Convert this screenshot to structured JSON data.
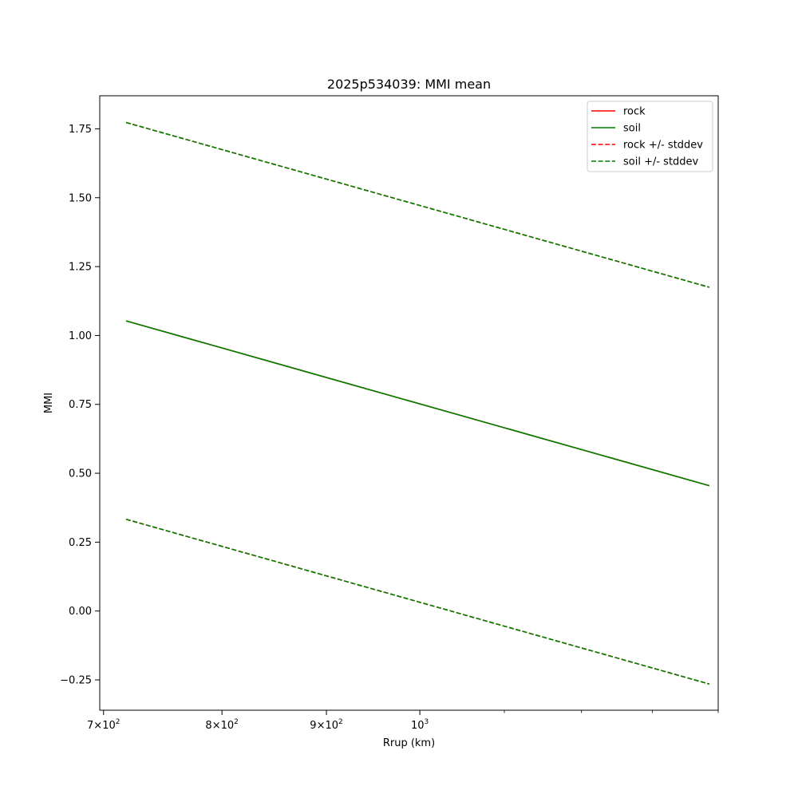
{
  "chart_data": {
    "type": "line",
    "title": "2025p534039: MMI mean",
    "xlabel": "Rrup (km)",
    "ylabel": "MMI",
    "xscale": "log",
    "xlim": [
      697,
      1400
    ],
    "ylim": [
      -0.36,
      1.87
    ],
    "grid": false,
    "legend_position": "top-right",
    "x_ticks": [
      {
        "value": 700,
        "mantissa": "7",
        "base": "10",
        "exp": "2"
      },
      {
        "value": 800,
        "mantissa": "8",
        "base": "10",
        "exp": "2"
      },
      {
        "value": 900,
        "mantissa": "9",
        "base": "10",
        "exp": "2"
      },
      {
        "value": 1000,
        "mantissa": "",
        "base": "10",
        "exp": "3"
      }
    ],
    "y_ticks": [
      {
        "value": -0.25,
        "label": "−0.25"
      },
      {
        "value": 0.0,
        "label": "0.00"
      },
      {
        "value": 0.25,
        "label": "0.25"
      },
      {
        "value": 0.5,
        "label": "0.50"
      },
      {
        "value": 0.75,
        "label": "0.75"
      },
      {
        "value": 1.0,
        "label": "1.00"
      },
      {
        "value": 1.25,
        "label": "1.25"
      },
      {
        "value": 1.5,
        "label": "1.50"
      },
      {
        "value": 1.75,
        "label": "1.75"
      }
    ],
    "series": [
      {
        "name": "rock",
        "color": "#ff0000",
        "dash": false,
        "x": [
          718,
          1386
        ],
        "y": [
          1.053,
          0.455
        ]
      },
      {
        "name": "soil",
        "color": "#008000",
        "dash": false,
        "x": [
          718,
          1386
        ],
        "y": [
          1.053,
          0.455
        ]
      },
      {
        "name": "rock +/- stddev",
        "color": "#ff0000",
        "dash": true,
        "x": [
          718,
          1386
        ],
        "y": [
          1.773,
          1.175
        ]
      },
      {
        "name": "rock +/- stddev",
        "color": "#ff0000",
        "dash": true,
        "x": [
          718,
          1386
        ],
        "y": [
          0.333,
          -0.265
        ]
      },
      {
        "name": "soil +/- stddev",
        "color": "#008000",
        "dash": true,
        "x": [
          718,
          1386
        ],
        "y": [
          1.773,
          1.175
        ]
      },
      {
        "name": "soil +/- stddev",
        "color": "#008000",
        "dash": true,
        "x": [
          718,
          1386
        ],
        "y": [
          0.333,
          -0.265
        ]
      }
    ],
    "legend": [
      {
        "label": "rock",
        "color": "#ff0000",
        "dash": false
      },
      {
        "label": "soil",
        "color": "#008000",
        "dash": false
      },
      {
        "label": "rock +/- stddev",
        "color": "#ff0000",
        "dash": true
      },
      {
        "label": "soil +/- stddev",
        "color": "#008000",
        "dash": true
      }
    ]
  }
}
